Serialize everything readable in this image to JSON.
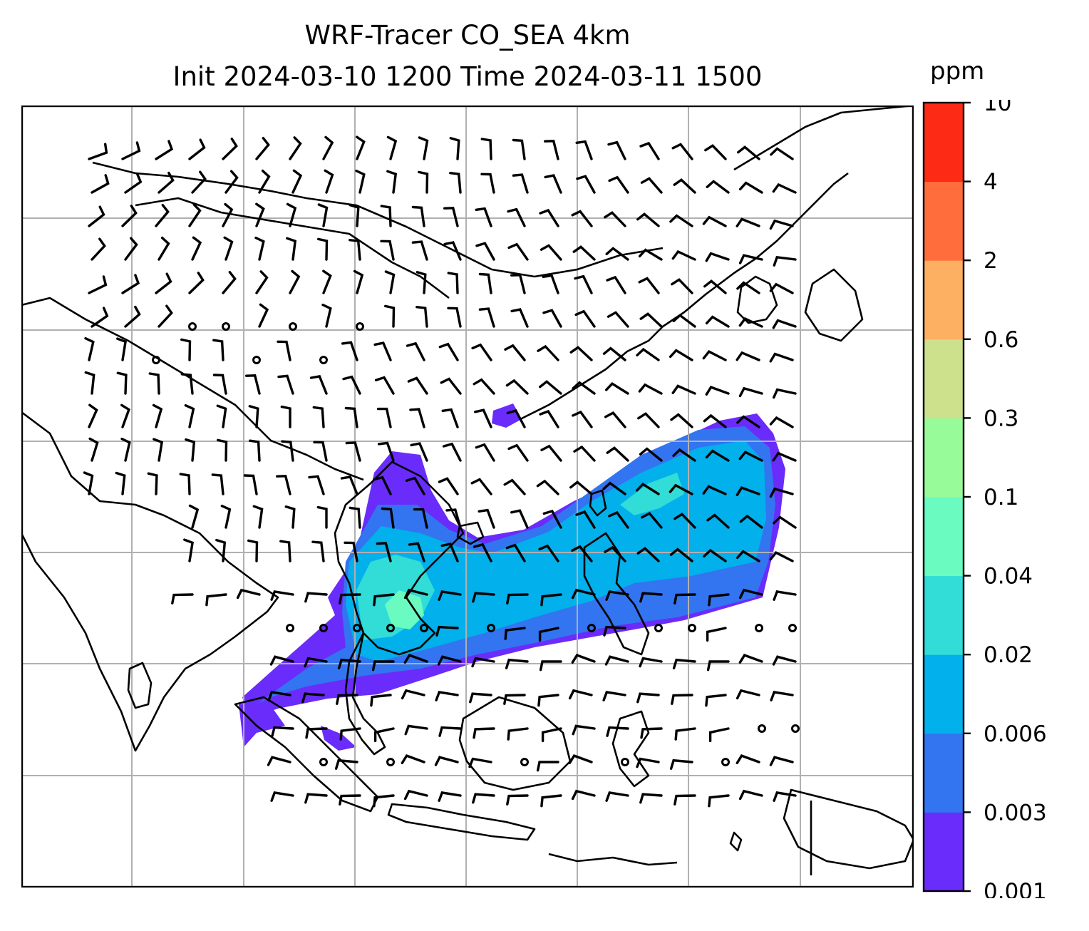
{
  "title": {
    "line1": "WRF-Tracer CO_SEA 4km",
    "line2": "Init 2024-03-10 1200 Time 2024-03-11 1500"
  },
  "colorbar": {
    "unit": "ppm",
    "levels": [
      "0.001",
      "0.003",
      "0.006",
      "0.02",
      "0.04",
      "0.1",
      "0.3",
      "0.6",
      "2",
      "4",
      "10"
    ],
    "colors": [
      "#6a2cfb",
      "#3374f0",
      "#02b0eb",
      "#32dcd7",
      "#6afbc0",
      "#98fb9a",
      "#cde08c",
      "#fdaf62",
      "#fe6d3b",
      "#fd2a16"
    ]
  },
  "map": {
    "gridlines": true,
    "coastline_color": "#000000",
    "gridline_color": "#b0b0b0",
    "barb_color": "#000000"
  }
}
